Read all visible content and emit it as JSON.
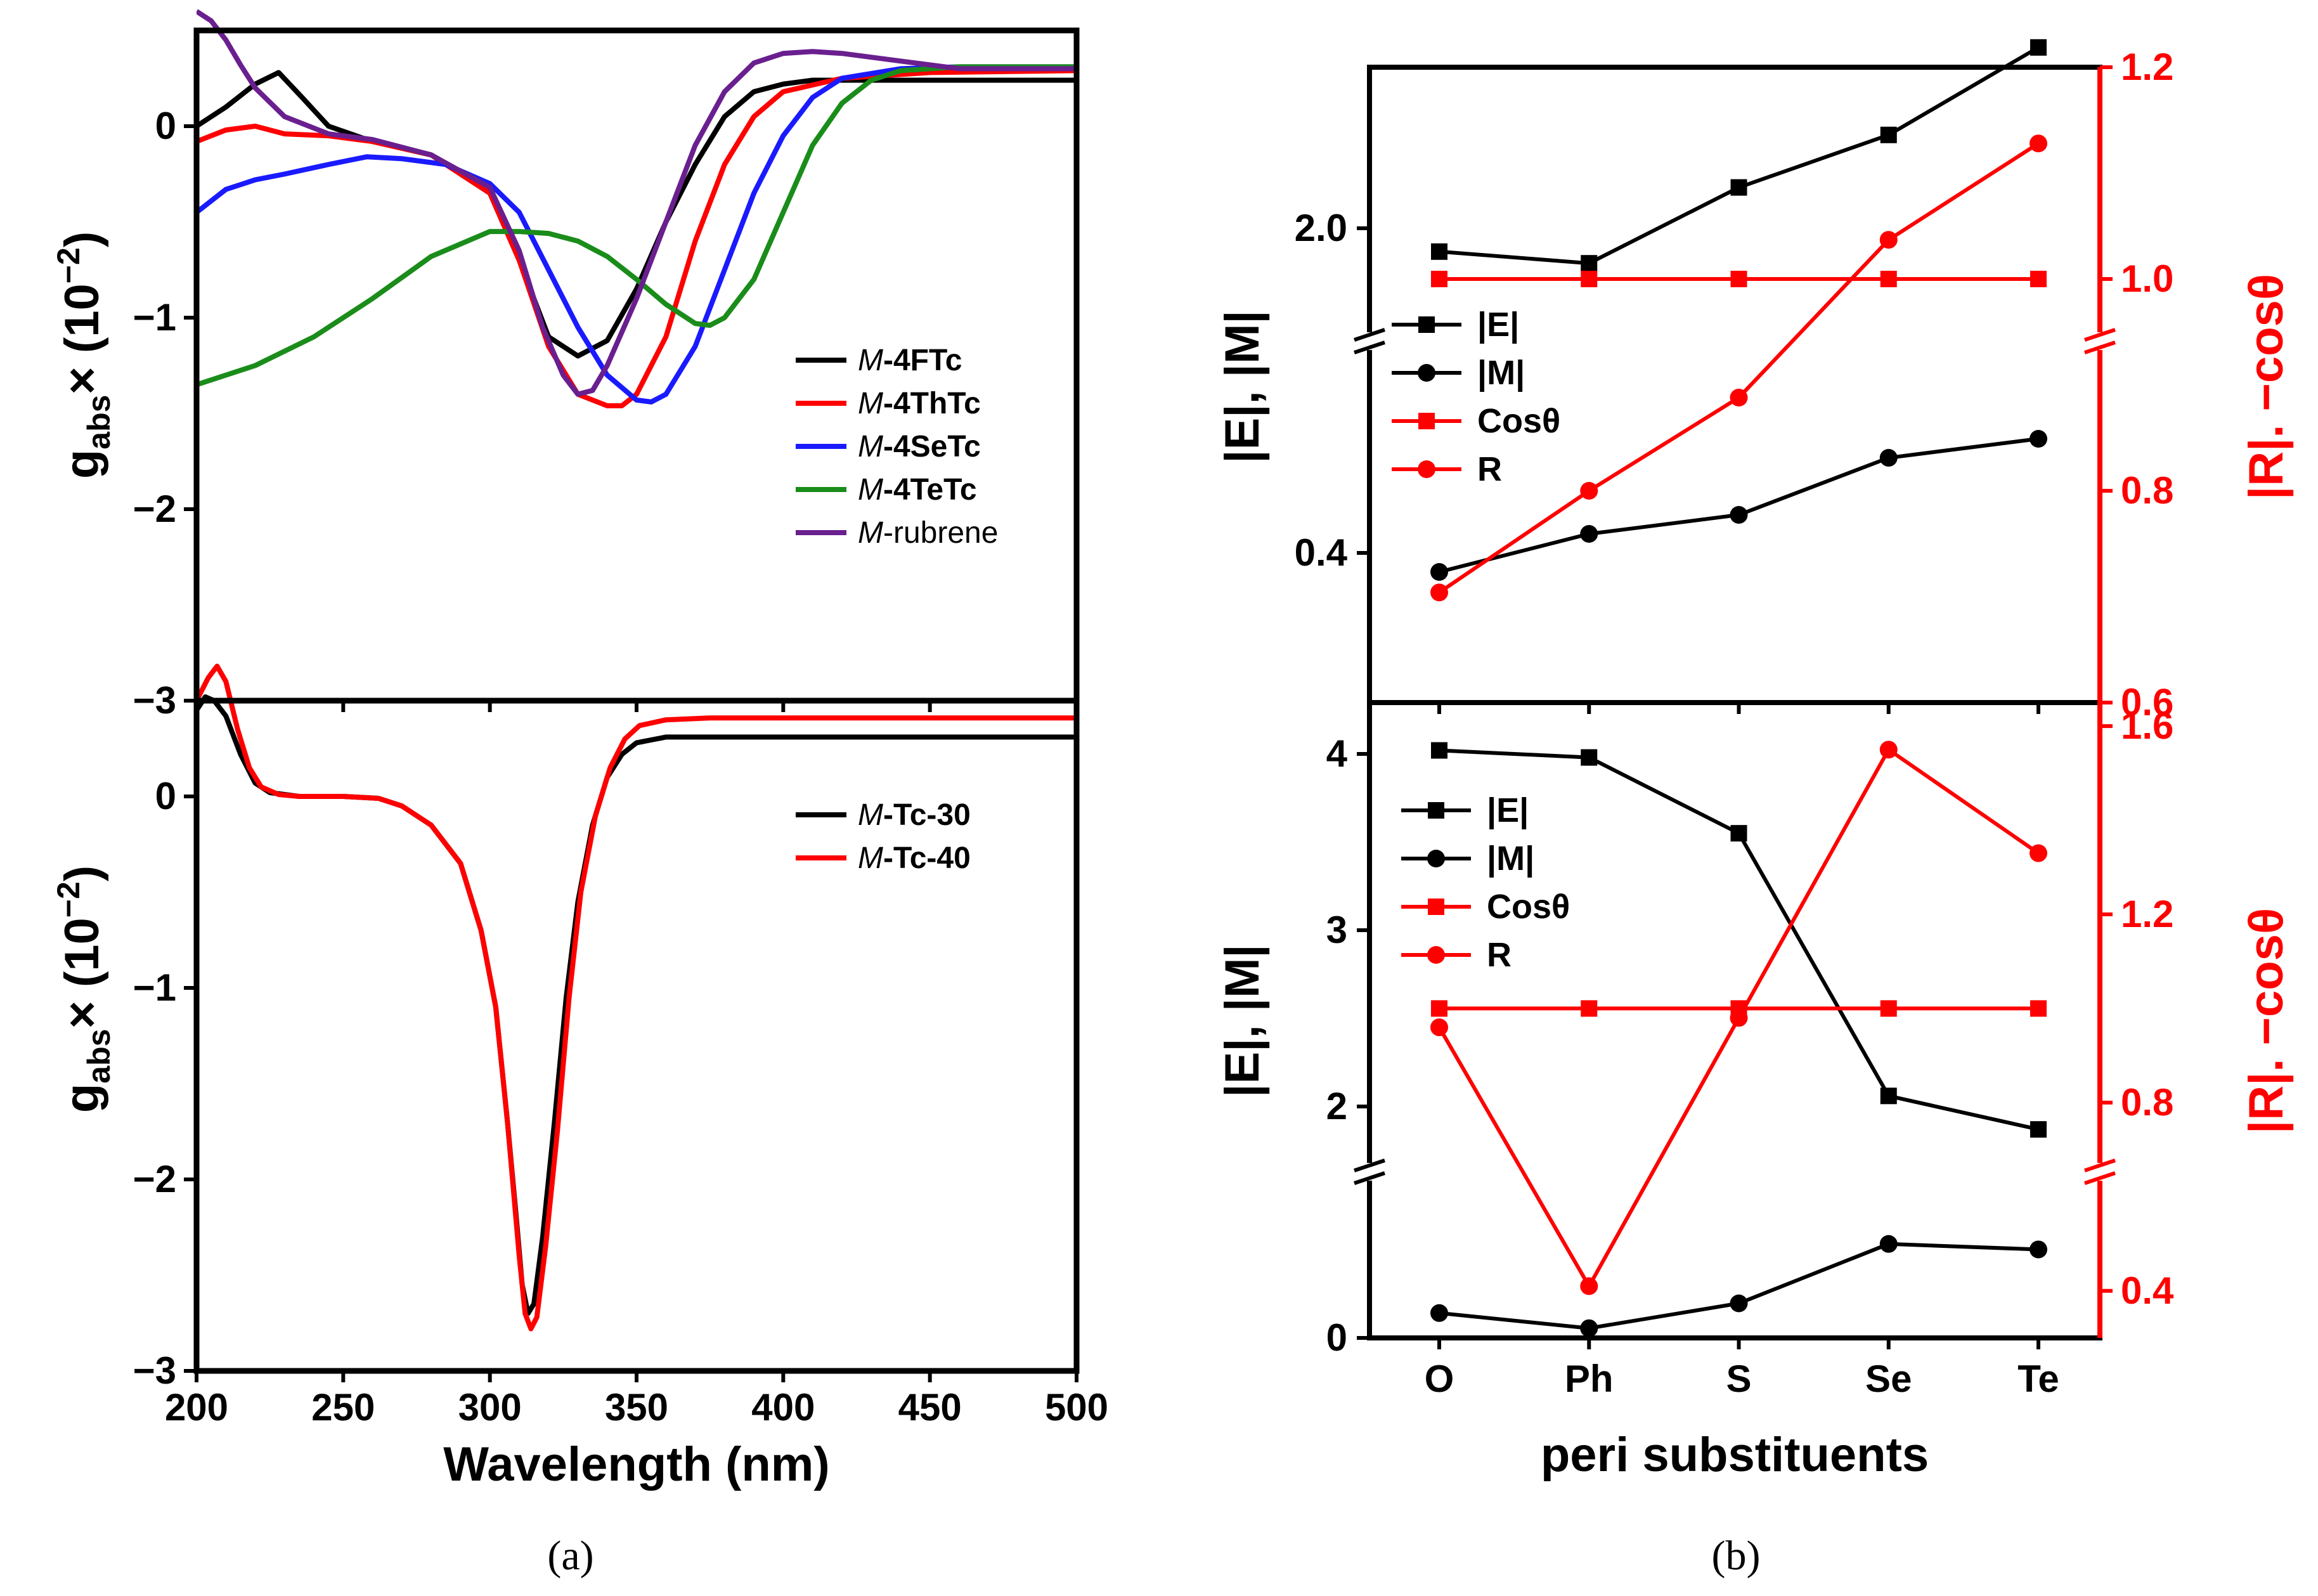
{
  "colors": {
    "black": "#000000",
    "red": "#ff0000",
    "blue": "#1a1aff",
    "green": "#1a8c1a",
    "purple": "#6a1f8f",
    "red_axis": "#ff0000"
  },
  "chart_data": [
    {
      "id": "a-top",
      "type": "line",
      "panel": "(a)",
      "xlim": [
        200,
        500
      ],
      "ylim": [
        -3,
        0.5
      ],
      "xticks": [
        200,
        250,
        300,
        350,
        400,
        450,
        500
      ],
      "yticks": [
        0,
        -1,
        -2,
        -3
      ],
      "ytick_labels": [
        "0",
        "−1",
        "−2",
        "−3"
      ],
      "ylabel": {
        "main": "g",
        "sub": "abs",
        "tail": "× (10",
        "exp": "−2",
        "close": ")"
      },
      "legend": [
        {
          "prefix": "M",
          "name": "-4FTc",
          "color": "#000000"
        },
        {
          "prefix": "M",
          "name": "-4ThTc",
          "color": "#ff0000"
        },
        {
          "prefix": "M",
          "name": "-4SeTc",
          "color": "#1a1aff"
        },
        {
          "prefix": "M",
          "name": "-4TeTc",
          "color": "#1a8c1a"
        },
        {
          "prefix": "M",
          "name": "-rubrene",
          "color": "#6a1f8f"
        }
      ],
      "series": [
        {
          "name": "M-4FTc",
          "color": "#000000",
          "x": [
            200,
            210,
            220,
            228,
            236,
            245,
            260,
            280,
            300,
            310,
            320,
            330,
            340,
            350,
            360,
            370,
            380,
            390,
            400,
            410,
            420,
            430,
            450,
            500
          ],
          "y": [
            0.0,
            0.1,
            0.22,
            0.28,
            0.15,
            0.0,
            -0.08,
            -0.15,
            -0.35,
            -0.7,
            -1.1,
            -1.2,
            -1.12,
            -0.85,
            -0.5,
            -0.2,
            0.05,
            0.18,
            0.22,
            0.24,
            0.24,
            0.24,
            0.24,
            0.24
          ]
        },
        {
          "name": "M-4ThTc",
          "color": "#ff0000",
          "x": [
            200,
            210,
            220,
            230,
            245,
            260,
            280,
            300,
            310,
            320,
            330,
            340,
            345,
            350,
            360,
            370,
            380,
            390,
            400,
            420,
            450,
            500
          ],
          "y": [
            -0.08,
            -0.02,
            0.0,
            -0.04,
            -0.05,
            -0.08,
            -0.15,
            -0.35,
            -0.7,
            -1.15,
            -1.4,
            -1.46,
            -1.46,
            -1.4,
            -1.1,
            -0.6,
            -0.2,
            0.05,
            0.18,
            0.25,
            0.28,
            0.29
          ]
        },
        {
          "name": "M-4SeTc",
          "color": "#1a1aff",
          "x": [
            200,
            210,
            220,
            230,
            245,
            258,
            270,
            285,
            300,
            310,
            320,
            330,
            340,
            350,
            355,
            360,
            370,
            380,
            390,
            400,
            410,
            420,
            440,
            460,
            500
          ],
          "y": [
            -0.45,
            -0.33,
            -0.28,
            -0.25,
            -0.2,
            -0.16,
            -0.17,
            -0.2,
            -0.3,
            -0.45,
            -0.75,
            -1.05,
            -1.3,
            -1.43,
            -1.44,
            -1.4,
            -1.15,
            -0.75,
            -0.35,
            -0.05,
            0.15,
            0.25,
            0.3,
            0.31,
            0.31
          ]
        },
        {
          "name": "M-4TeTc",
          "color": "#1a8c1a",
          "x": [
            200,
            220,
            240,
            260,
            280,
            300,
            310,
            320,
            330,
            340,
            350,
            360,
            370,
            375,
            380,
            390,
            400,
            410,
            420,
            430,
            440,
            460,
            500
          ],
          "y": [
            -1.35,
            -1.25,
            -1.1,
            -0.9,
            -0.68,
            -0.55,
            -0.55,
            -0.56,
            -0.6,
            -0.68,
            -0.8,
            -0.93,
            -1.03,
            -1.04,
            -1.0,
            -0.8,
            -0.45,
            -0.1,
            0.12,
            0.24,
            0.29,
            0.31,
            0.31
          ]
        },
        {
          "name": "M-rubrene",
          "color": "#6a1f8f",
          "x": [
            200,
            205,
            210,
            215,
            220,
            230,
            245,
            260,
            280,
            300,
            310,
            318,
            325,
            330,
            335,
            340,
            350,
            360,
            370,
            380,
            390,
            400,
            410,
            420,
            440,
            460,
            500
          ],
          "y": [
            0.6,
            0.55,
            0.45,
            0.32,
            0.2,
            0.05,
            -0.04,
            -0.07,
            -0.15,
            -0.32,
            -0.65,
            -1.05,
            -1.3,
            -1.4,
            -1.38,
            -1.25,
            -0.9,
            -0.5,
            -0.1,
            0.18,
            0.33,
            0.38,
            0.39,
            0.38,
            0.34,
            0.3,
            0.3
          ]
        }
      ]
    },
    {
      "id": "a-bottom",
      "type": "line",
      "panel": "(a)",
      "xlim": [
        200,
        500
      ],
      "ylim": [
        -3,
        0.5
      ],
      "xticks": [
        200,
        250,
        300,
        350,
        400,
        450,
        500
      ],
      "xtick_labels": [
        "200",
        "250",
        "300",
        "350",
        "400",
        "450",
        "500"
      ],
      "yticks": [
        0,
        -1,
        -2,
        -3
      ],
      "ytick_labels": [
        "0",
        "−1",
        "−2",
        "−3"
      ],
      "xlabel": "Wavelength (nm)",
      "ylabel": {
        "main": "g",
        "sub": "abs",
        "tail": "× (10",
        "exp": "−2",
        "close": ")"
      },
      "legend": [
        {
          "prefix": "M",
          "name": "-Tc-30",
          "color": "#000000"
        },
        {
          "prefix": "M",
          "name": "-Tc-40",
          "color": "#ff0000"
        }
      ],
      "series": [
        {
          "name": "M-Tc-30",
          "color": "#000000",
          "x": [
            200,
            203,
            206,
            210,
            215,
            220,
            225,
            235,
            250,
            262,
            270,
            280,
            290,
            297,
            302,
            306,
            309,
            311,
            313,
            315,
            318,
            322,
            326,
            330,
            335,
            340,
            345,
            350,
            360,
            375,
            400,
            500
          ],
          "y": [
            0.45,
            0.52,
            0.5,
            0.42,
            0.22,
            0.07,
            0.02,
            0.0,
            0.0,
            -0.01,
            -0.05,
            -0.15,
            -0.35,
            -0.7,
            -1.1,
            -1.7,
            -2.2,
            -2.55,
            -2.7,
            -2.65,
            -2.3,
            -1.7,
            -1.05,
            -0.55,
            -0.15,
            0.1,
            0.22,
            0.28,
            0.31,
            0.31,
            0.31,
            0.31
          ]
        },
        {
          "name": "M-Tc-40",
          "color": "#ff0000",
          "x": [
            200,
            204,
            207,
            210,
            214,
            218,
            222,
            228,
            235,
            250,
            262,
            270,
            280,
            290,
            297,
            302,
            306,
            310,
            312,
            314,
            316,
            319,
            323,
            327,
            331,
            336,
            341,
            346,
            351,
            360,
            375,
            400,
            500
          ],
          "y": [
            0.5,
            0.62,
            0.68,
            0.6,
            0.35,
            0.15,
            0.05,
            0.01,
            0.0,
            0.0,
            -0.01,
            -0.05,
            -0.15,
            -0.35,
            -0.7,
            -1.1,
            -1.7,
            -2.4,
            -2.7,
            -2.78,
            -2.72,
            -2.35,
            -1.75,
            -1.05,
            -0.5,
            -0.1,
            0.15,
            0.3,
            0.37,
            0.4,
            0.41,
            0.41,
            0.41
          ]
        }
      ]
    },
    {
      "id": "b-top",
      "type": "line",
      "panel": "(b)",
      "categories": [
        "O",
        "Ph",
        "S",
        "Se",
        "Te"
      ],
      "ylabel": "|E|, |M|",
      "ylabel_right": "|R|. −cosθ",
      "left_axis_break": true,
      "right_axis_break": true,
      "left_yticks": [
        2.0,
        0.4
      ],
      "left_ytick_labels": [
        "2.0",
        "0.4"
      ],
      "right_ylim": [
        0.6,
        1.2
      ],
      "right_yticks": [
        0.6,
        0.8,
        1.0,
        1.2
      ],
      "right_ytick_labels": [
        "0.6",
        "0.8",
        "1.0",
        "1.2"
      ],
      "legend": [
        {
          "name": "|E|",
          "marker": "square",
          "color": "#000000"
        },
        {
          "name": "|M|",
          "marker": "circle",
          "color": "#000000"
        },
        {
          "name": "Cosθ",
          "marker": "square",
          "color": "#ff0000"
        },
        {
          "name": "R",
          "marker": "circle",
          "color": "#ff0000"
        }
      ],
      "series": [
        {
          "name": "|E|",
          "axis": "left-upper",
          "marker": "square",
          "color": "#000000",
          "values": [
            1.96,
            1.94,
            2.07,
            2.16,
            2.31
          ]
        },
        {
          "name": "|M|",
          "axis": "left-lower",
          "marker": "circle",
          "color": "#000000",
          "values": [
            0.39,
            0.41,
            0.42,
            0.45,
            0.46
          ]
        },
        {
          "name": "Cosθ",
          "axis": "right",
          "marker": "square",
          "color": "#ff0000",
          "values": [
            1.0,
            1.0,
            1.0,
            1.0,
            1.0
          ]
        },
        {
          "name": "R",
          "axis": "right",
          "marker": "circle",
          "color": "#ff0000",
          "values": [
            0.704,
            0.8,
            0.888,
            1.037,
            1.128
          ]
        }
      ]
    },
    {
      "id": "b-bottom",
      "type": "line",
      "panel": "(b)",
      "categories": [
        "O",
        "Ph",
        "S",
        "Se",
        "Te"
      ],
      "xlabel": "peri substituents",
      "ylabel": "|E|, |M|",
      "ylabel_right": "|R|. −cosθ",
      "left_axis_break": true,
      "right_axis_break": true,
      "left_yticks": [
        4,
        3,
        2,
        0
      ],
      "left_ytick_labels": [
        "4",
        "3",
        "2",
        "0"
      ],
      "right_ylim": [
        0.3,
        1.65
      ],
      "right_yticks": [
        0.4,
        0.8,
        1.2,
        1.6
      ],
      "right_ytick_labels": [
        "0.4",
        "0.8",
        "1.2",
        "1.6"
      ],
      "legend": [
        {
          "name": "|E|",
          "marker": "square",
          "color": "#000000"
        },
        {
          "name": "|M|",
          "marker": "circle",
          "color": "#000000"
        },
        {
          "name": "Cosθ",
          "marker": "square",
          "color": "#ff0000"
        },
        {
          "name": "R",
          "marker": "circle",
          "color": "#ff0000"
        }
      ],
      "series": [
        {
          "name": "|E|",
          "axis": "left-upper",
          "marker": "square",
          "color": "#000000",
          "values": [
            4.02,
            3.98,
            3.55,
            2.06,
            1.87
          ]
        },
        {
          "name": "|M|",
          "axis": "left-lower",
          "marker": "circle",
          "color": "#000000",
          "values": [
            0.18,
            0.07,
            0.25,
            0.68,
            0.64
          ]
        },
        {
          "name": "Cosθ",
          "axis": "right",
          "marker": "square",
          "color": "#ff0000",
          "values": [
            1.0,
            1.0,
            1.0,
            1.0,
            1.0
          ]
        },
        {
          "name": "R",
          "axis": "right",
          "marker": "circle",
          "color": "#ff0000",
          "values": [
            0.96,
            0.41,
            0.98,
            1.55,
            1.33
          ]
        }
      ]
    }
  ],
  "panel_labels": {
    "a": "(a)",
    "b": "(b)"
  }
}
